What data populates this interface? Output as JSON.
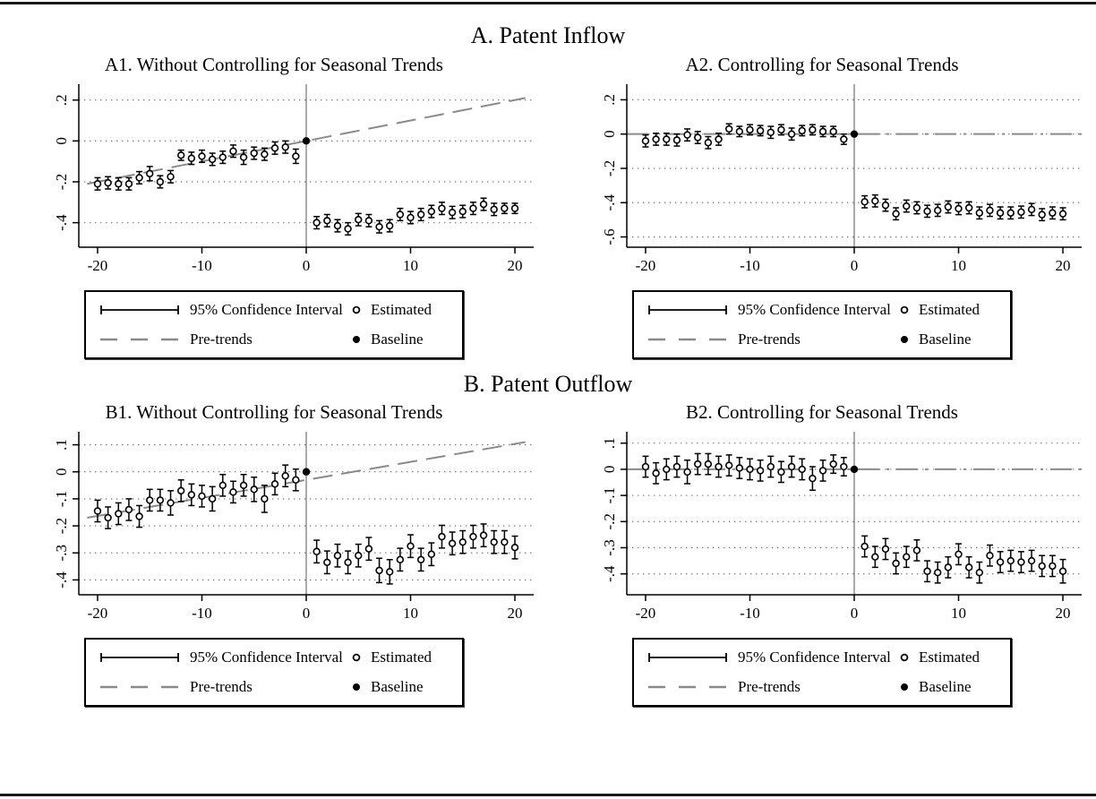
{
  "figure": {
    "section_a_title": "A. Patent Inflow",
    "section_b_title": "B. Patent Outflow"
  },
  "legend": {
    "ci": "95% Confidence Interval",
    "estimated": "Estimated",
    "pretrends": "Pre-trends",
    "baseline": "Baseline"
  },
  "colors": {
    "pretrend": "#8a8a8a",
    "grid": "#6e6e6e",
    "zero_line": "#666666",
    "axis": "#000000",
    "marker_stroke": "#000000",
    "marker_fill": "#ffffff"
  },
  "chart_data": {
    "type": "scatter",
    "description": "Event-study estimates with 95% confidence intervals around event time 0; hollow circles are estimates, filled circle at 0 is the baseline, gray dashed line shows pre-trends.",
    "x_event_time": [
      -20,
      -19,
      -18,
      -17,
      -16,
      -15,
      -14,
      -13,
      -12,
      -11,
      -10,
      -9,
      -8,
      -7,
      -6,
      -5,
      -4,
      -3,
      -2,
      -1,
      1,
      2,
      3,
      4,
      5,
      6,
      7,
      8,
      9,
      10,
      11,
      12,
      13,
      14,
      15,
      16,
      17,
      18,
      19,
      20
    ],
    "xticks": [
      -20,
      -10,
      0,
      10,
      20
    ],
    "baseline": {
      "x": 0,
      "y": 0
    },
    "panels": [
      {
        "id": "A1",
        "title": "A1. Without Controlling for Seasonal Trends",
        "ylim": [
          -0.52,
          0.26
        ],
        "ytick_values": [
          0.2,
          0,
          -0.2,
          -0.4
        ],
        "ytick_labels": [
          ".2",
          "0",
          "-.2",
          "-.4"
        ],
        "estimates": [
          -0.21,
          -0.205,
          -0.21,
          -0.21,
          -0.18,
          -0.16,
          -0.2,
          -0.175,
          -0.07,
          -0.085,
          -0.075,
          -0.09,
          -0.08,
          -0.05,
          -0.08,
          -0.06,
          -0.065,
          -0.035,
          -0.03,
          -0.075,
          -0.4,
          -0.39,
          -0.415,
          -0.43,
          -0.385,
          -0.39,
          -0.42,
          -0.415,
          -0.36,
          -0.375,
          -0.36,
          -0.345,
          -0.33,
          -0.35,
          -0.345,
          -0.33,
          -0.31,
          -0.335,
          -0.33,
          -0.33
        ],
        "ci_half_width": [
          0.03,
          0.03,
          0.03,
          0.03,
          0.03,
          0.035,
          0.03,
          0.03,
          0.025,
          0.03,
          0.03,
          0.03,
          0.03,
          0.03,
          0.035,
          0.03,
          0.03,
          0.03,
          0.03,
          0.035,
          0.03,
          0.03,
          0.03,
          0.03,
          0.03,
          0.03,
          0.03,
          0.03,
          0.03,
          0.03,
          0.03,
          0.03,
          0.03,
          0.03,
          0.03,
          0.03,
          0.03,
          0.03,
          0.025,
          0.025
        ],
        "pretrend": {
          "x": [
            -21,
            21
          ],
          "y": [
            -0.21,
            0.21
          ],
          "style": "dash"
        }
      },
      {
        "id": "A2",
        "title": "A2. Controlling for Seasonal Trends",
        "ylim": [
          -0.66,
          0.27
        ],
        "ytick_values": [
          0.2,
          0,
          -0.2,
          -0.4,
          -0.6
        ],
        "ytick_labels": [
          ".2",
          "0",
          "-.2",
          "-.4",
          "-.6"
        ],
        "estimates": [
          -0.04,
          -0.03,
          -0.03,
          -0.035,
          -0.005,
          -0.02,
          -0.05,
          -0.03,
          0.03,
          0.015,
          0.025,
          0.02,
          0.01,
          0.025,
          0.0,
          0.02,
          0.025,
          0.015,
          0.015,
          -0.03,
          -0.395,
          -0.39,
          -0.415,
          -0.465,
          -0.42,
          -0.43,
          -0.45,
          -0.445,
          -0.425,
          -0.435,
          -0.43,
          -0.46,
          -0.445,
          -0.46,
          -0.46,
          -0.455,
          -0.44,
          -0.47,
          -0.46,
          -0.465
        ],
        "ci_half_width": [
          0.035,
          0.035,
          0.035,
          0.035,
          0.035,
          0.035,
          0.035,
          0.035,
          0.03,
          0.03,
          0.03,
          0.03,
          0.035,
          0.03,
          0.035,
          0.03,
          0.03,
          0.03,
          0.03,
          0.03,
          0.035,
          0.035,
          0.035,
          0.035,
          0.035,
          0.035,
          0.035,
          0.035,
          0.035,
          0.035,
          0.035,
          0.035,
          0.035,
          0.035,
          0.035,
          0.035,
          0.035,
          0.035,
          0.035,
          0.035
        ],
        "pretrend": {
          "x": [
            -21.8,
            21.8
          ],
          "y": [
            0,
            0
          ],
          "style": "dashdot"
        }
      },
      {
        "id": "B1",
        "title": "B1. Without Controlling for Seasonal Trends",
        "ylim": [
          -0.455,
          0.135
        ],
        "ytick_values": [
          0.1,
          0,
          -0.1,
          -0.2,
          -0.3,
          -0.4
        ],
        "ytick_labels": [
          ".1",
          "0",
          "-.1",
          "-.2",
          "-.3",
          "-.4"
        ],
        "estimates": [
          -0.145,
          -0.17,
          -0.155,
          -0.14,
          -0.165,
          -0.105,
          -0.105,
          -0.115,
          -0.07,
          -0.085,
          -0.09,
          -0.1,
          -0.05,
          -0.075,
          -0.05,
          -0.065,
          -0.1,
          -0.045,
          -0.015,
          -0.03,
          -0.295,
          -0.335,
          -0.31,
          -0.335,
          -0.31,
          -0.285,
          -0.365,
          -0.37,
          -0.325,
          -0.275,
          -0.325,
          -0.305,
          -0.24,
          -0.265,
          -0.26,
          -0.24,
          -0.235,
          -0.26,
          -0.26,
          -0.28
        ],
        "ci_half_width": [
          0.04,
          0.04,
          0.04,
          0.04,
          0.04,
          0.04,
          0.04,
          0.045,
          0.04,
          0.04,
          0.04,
          0.045,
          0.04,
          0.04,
          0.04,
          0.045,
          0.05,
          0.04,
          0.04,
          0.04,
          0.042,
          0.042,
          0.042,
          0.042,
          0.042,
          0.042,
          0.045,
          0.045,
          0.042,
          0.042,
          0.042,
          0.042,
          0.042,
          0.042,
          0.042,
          0.042,
          0.042,
          0.042,
          0.042,
          0.042
        ],
        "pretrend": {
          "x": [
            -21,
            21
          ],
          "y": [
            -0.17,
            0.11
          ],
          "style": "dash"
        }
      },
      {
        "id": "B2",
        "title": "B2. Controlling for Seasonal Trends",
        "ylim": [
          -0.48,
          0.13
        ],
        "ytick_values": [
          0.1,
          0,
          -0.1,
          -0.2,
          -0.3,
          -0.4
        ],
        "ytick_labels": [
          ".1",
          "0",
          "-.1",
          "-.2",
          "-.3",
          "-.4"
        ],
        "estimates": [
          0.01,
          -0.015,
          0.0,
          0.01,
          -0.01,
          0.02,
          0.02,
          0.01,
          0.015,
          0.005,
          0.0,
          -0.005,
          0.01,
          -0.01,
          0.01,
          0.0,
          -0.035,
          -0.005,
          0.02,
          0.01,
          -0.295,
          -0.335,
          -0.305,
          -0.36,
          -0.335,
          -0.31,
          -0.39,
          -0.395,
          -0.375,
          -0.325,
          -0.375,
          -0.395,
          -0.33,
          -0.355,
          -0.35,
          -0.355,
          -0.35,
          -0.37,
          -0.37,
          -0.39
        ],
        "ci_half_width": [
          0.04,
          0.04,
          0.04,
          0.04,
          0.045,
          0.04,
          0.04,
          0.04,
          0.04,
          0.04,
          0.04,
          0.04,
          0.04,
          0.04,
          0.04,
          0.04,
          0.045,
          0.04,
          0.035,
          0.035,
          0.04,
          0.04,
          0.04,
          0.04,
          0.04,
          0.04,
          0.04,
          0.04,
          0.04,
          0.04,
          0.04,
          0.04,
          0.04,
          0.04,
          0.04,
          0.04,
          0.04,
          0.04,
          0.04,
          0.045
        ],
        "pretrend": {
          "x": [
            -21.8,
            21.8
          ],
          "y": [
            0,
            0
          ],
          "style": "dashdot"
        }
      }
    ]
  }
}
